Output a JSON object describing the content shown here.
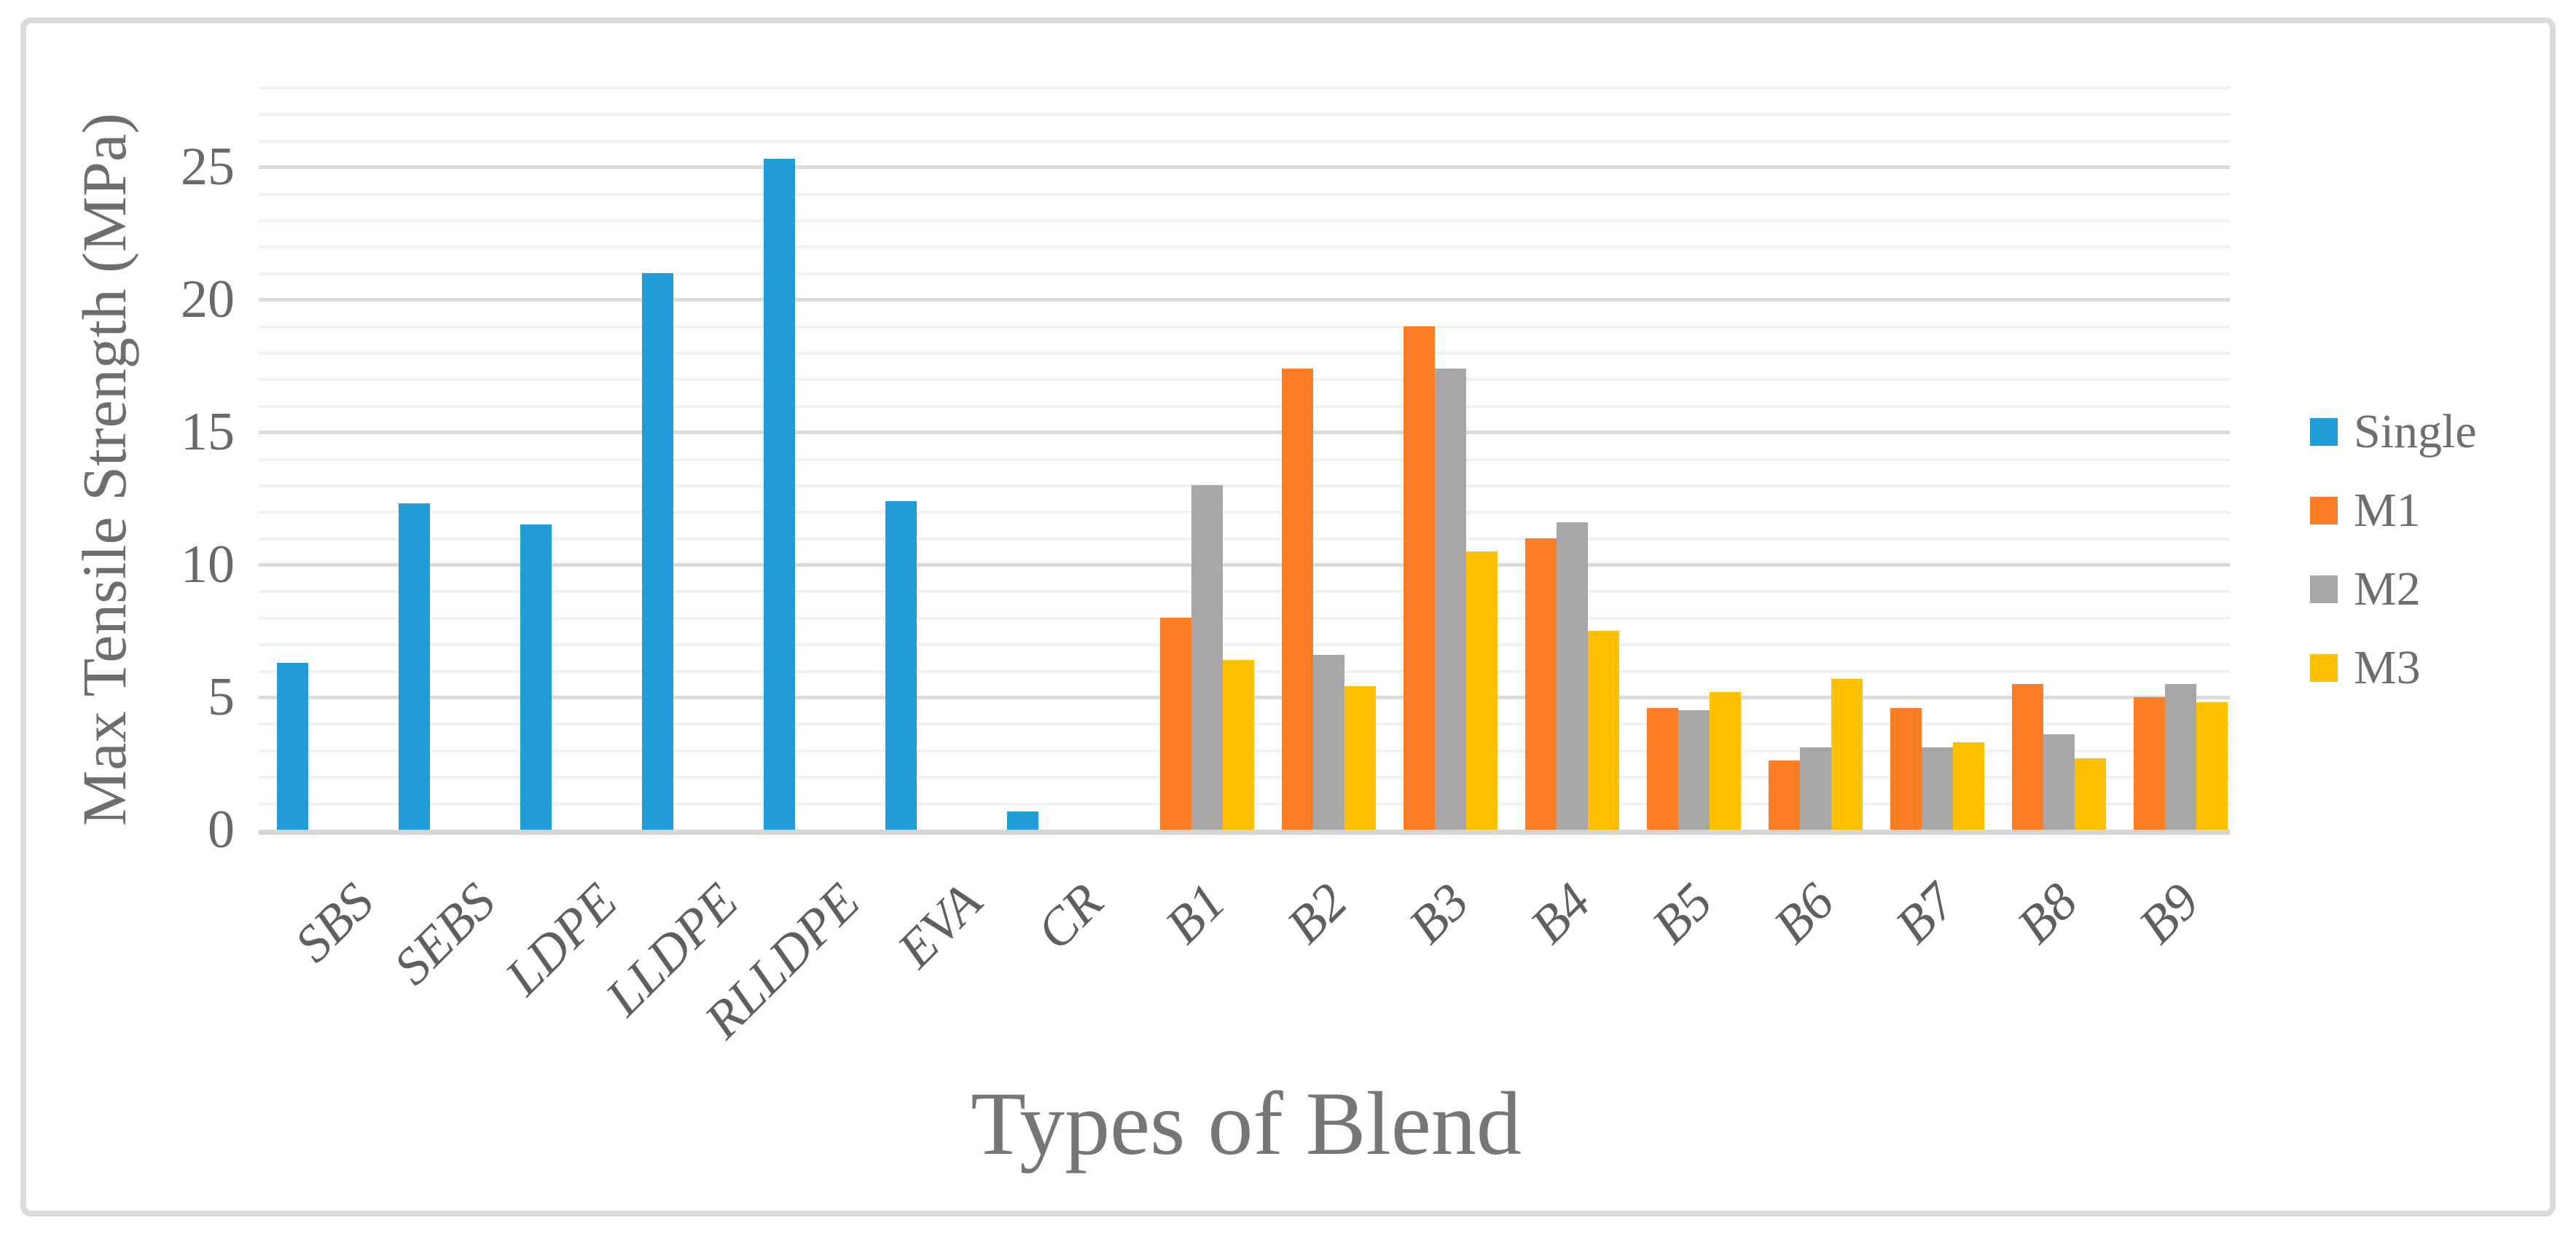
{
  "figure": {
    "background": "#ffffff",
    "border_color": "#dbdbdb"
  },
  "chart_data": {
    "type": "bar",
    "title": "",
    "xlabel": "Types of Blend",
    "ylabel": "Max Tensile Strength (MPa)",
    "ylim": [
      0,
      28
    ],
    "ytick_major_interval": 5,
    "ytick_minor_interval": 1,
    "ytick_labels": [
      "0",
      "5",
      "10",
      "15",
      "20",
      "25"
    ],
    "ytick_values": [
      0,
      5,
      10,
      15,
      20,
      25
    ],
    "grid": "horizontal major+minor",
    "legend_position": "right",
    "categories": [
      "SBS",
      "SEBS",
      "LDPE",
      "LLDPE",
      "RLLDPE",
      "EVA",
      "CR",
      "B1",
      "B2",
      "B3",
      "B4",
      "B5",
      "B6",
      "B7",
      "B8",
      "B9"
    ],
    "series": [
      {
        "name": "Single",
        "color": "#219cd8",
        "values": [
          6.3,
          12.3,
          11.5,
          21,
          25.3,
          12.4,
          0.7,
          null,
          null,
          null,
          null,
          null,
          null,
          null,
          null,
          null
        ]
      },
      {
        "name": "M1",
        "color": "#fb7d25",
        "values": [
          null,
          null,
          null,
          null,
          null,
          null,
          null,
          8,
          17.4,
          19,
          11,
          4.6,
          2.6,
          4.6,
          5.5,
          5
        ]
      },
      {
        "name": "M2",
        "color": "#a8a7a6",
        "values": [
          null,
          null,
          null,
          null,
          null,
          null,
          null,
          13,
          6.6,
          17.4,
          11.6,
          4.5,
          3.1,
          3.1,
          3.6,
          5.5
        ]
      },
      {
        "name": "M3",
        "color": "#ffc000",
        "values": [
          null,
          null,
          null,
          null,
          null,
          null,
          null,
          6.4,
          5.4,
          10.5,
          7.5,
          5.2,
          5.7,
          3.3,
          2.7,
          4.8
        ]
      }
    ]
  },
  "colors": {
    "gridline_minor": "#f1f1f1",
    "gridline_major": "#dbdbdb",
    "axis_line": "#d5d5d5",
    "tick_text": "#696969",
    "title_text": "#6e6e6e"
  }
}
